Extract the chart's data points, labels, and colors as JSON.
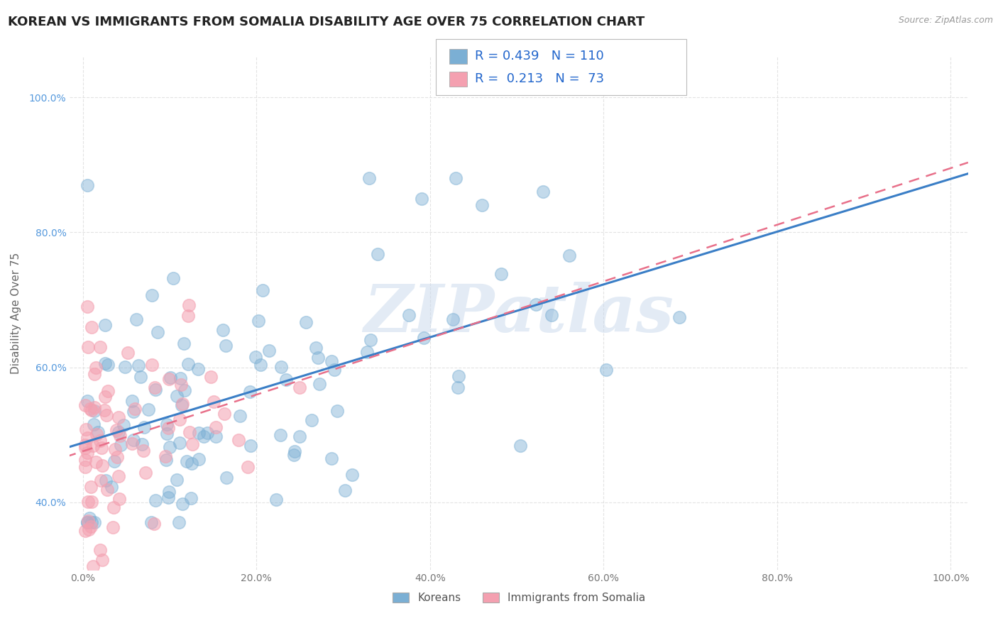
{
  "title": "KOREAN VS IMMIGRANTS FROM SOMALIA DISABILITY AGE OVER 75 CORRELATION CHART",
  "source": "Source: ZipAtlas.com",
  "ylabel": "Disability Age Over 75",
  "korean_color": "#7BAFD4",
  "somalia_color": "#F4A0B0",
  "korean_line_color": "#3A7EC6",
  "somalia_line_color": "#E8708A",
  "korean_R": 0.439,
  "korean_N": 110,
  "somalia_R": 0.213,
  "somalia_N": 73,
  "legend_label_korean": "Koreans",
  "legend_label_somalia": "Immigrants from Somalia",
  "watermark": "ZIPatlas",
  "background_color": "#ffffff",
  "grid_color": "#dddddd",
  "title_fontsize": 13,
  "axis_label_fontsize": 11,
  "tick_fontsize": 10,
  "legend_fontsize": 13,
  "stat_fontsize": 13,
  "ytick_color": "#5599DD",
  "xtick_color": "#777777"
}
